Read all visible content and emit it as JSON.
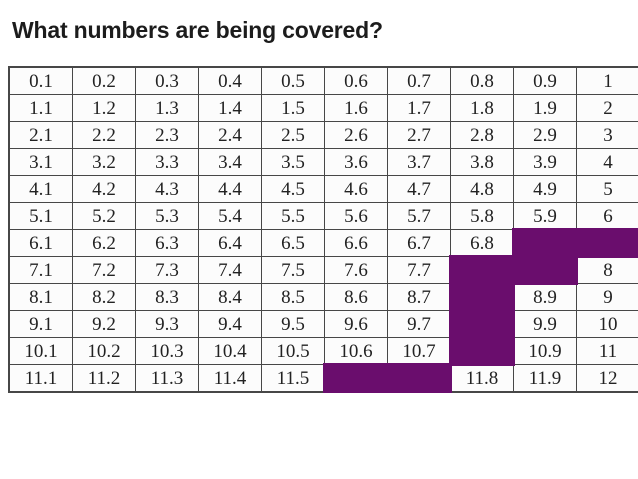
{
  "page": {
    "title": "What numbers are being covered?"
  },
  "colors": {
    "covered_fill": "#6a0d6d",
    "grid_border": "#474747",
    "cell_background": "#fcfcfc",
    "cell_text": "#222222",
    "title_text": "#1c1c1c",
    "page_background": "#ffffff"
  },
  "chart_data": {
    "type": "table",
    "title": "What numbers are being covered?",
    "rows": 12,
    "cols": 10,
    "cells": [
      [
        "0.1",
        "0.2",
        "0.3",
        "0.4",
        "0.5",
        "0.6",
        "0.7",
        "0.8",
        "0.9",
        "1"
      ],
      [
        "1.1",
        "1.2",
        "1.3",
        "1.4",
        "1.5",
        "1.6",
        "1.7",
        "1.8",
        "1.9",
        "2"
      ],
      [
        "2.1",
        "2.2",
        "2.3",
        "2.4",
        "2.5",
        "2.6",
        "2.7",
        "2.8",
        "2.9",
        "3"
      ],
      [
        "3.1",
        "3.2",
        "3.3",
        "3.4",
        "3.5",
        "3.6",
        "3.7",
        "3.8",
        "3.9",
        "4"
      ],
      [
        "4.1",
        "4.2",
        "4.3",
        "4.4",
        "4.5",
        "4.6",
        "4.7",
        "4.8",
        "4.9",
        "5"
      ],
      [
        "5.1",
        "5.2",
        "5.3",
        "5.4",
        "5.5",
        "5.6",
        "5.7",
        "5.8",
        "5.9",
        "6"
      ],
      [
        "6.1",
        "6.2",
        "6.3",
        "6.4",
        "6.5",
        "6.6",
        "6.7",
        "6.8",
        "",
        ""
      ],
      [
        "7.1",
        "7.2",
        "7.3",
        "7.4",
        "7.5",
        "7.6",
        "7.7",
        "",
        "",
        "8"
      ],
      [
        "8.1",
        "8.2",
        "8.3",
        "8.4",
        "8.5",
        "8.6",
        "8.7",
        "",
        "8.9",
        "9"
      ],
      [
        "9.1",
        "9.2",
        "9.3",
        "9.4",
        "9.5",
        "9.6",
        "9.7",
        "",
        "9.9",
        "10"
      ],
      [
        "10.1",
        "10.2",
        "10.3",
        "10.4",
        "10.5",
        "10.6",
        "10.7",
        "",
        "10.9",
        "11"
      ],
      [
        "11.1",
        "11.2",
        "11.3",
        "11.4",
        "11.5",
        "",
        "",
        "11.8",
        "11.9",
        "12"
      ]
    ],
    "covered_cells": [
      [
        6,
        8
      ],
      [
        6,
        9
      ],
      [
        7,
        7
      ],
      [
        7,
        8
      ],
      [
        8,
        7
      ],
      [
        9,
        7
      ],
      [
        10,
        7
      ],
      [
        11,
        5
      ],
      [
        11,
        6
      ]
    ],
    "layout_hints": {
      "grid_lines": "on",
      "covered_style": "solid purple rectangles overlapping cell borders"
    }
  }
}
